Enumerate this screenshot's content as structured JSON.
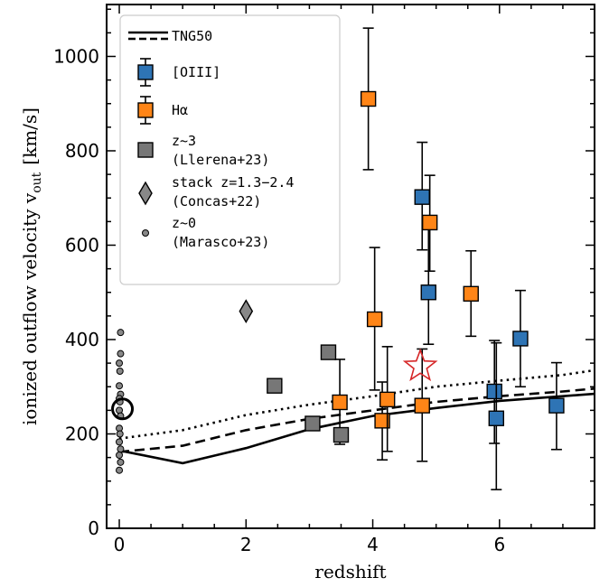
{
  "chart_data": {
    "type": "scatter",
    "xlabel": "redshift",
    "ylabel": {
      "main": "ionized outflow velocity v",
      "sub": "out",
      "unit": "[km/s]"
    },
    "xlim": [
      -0.2,
      7.5
    ],
    "ylim": [
      0,
      1110
    ],
    "xticks": [
      0,
      2,
      4,
      6
    ],
    "yticks": [
      0,
      200,
      400,
      600,
      800,
      1000
    ],
    "grid": false,
    "legend_position": "top-left",
    "colors": {
      "oiii": "#2e74b5",
      "halpha": "#ff8517",
      "llerena": "#777777",
      "concas": "#888888",
      "marasco": "#888888",
      "star": "#d62728"
    },
    "legend": [
      {
        "key": "tng50",
        "label": "TNG50"
      },
      {
        "key": "oiii",
        "label": "[OIII]"
      },
      {
        "key": "halpha",
        "label": "Hα"
      },
      {
        "key": "llerena",
        "label": "z~3",
        "label2": "(Llerena+23)"
      },
      {
        "key": "concas",
        "label": "stack z=1.3−2.4",
        "label2": "(Concas+22)"
      },
      {
        "key": "marasco",
        "label": "z~0",
        "label2": "(Marasco+23)"
      }
    ],
    "series": [
      {
        "key": "tng50_solid",
        "kind": "line",
        "dash": "solid",
        "points": [
          [
            0,
            165
          ],
          [
            1,
            138
          ],
          [
            2,
            170
          ],
          [
            3,
            210
          ],
          [
            4,
            238
          ],
          [
            5,
            255
          ],
          [
            6,
            270
          ],
          [
            7,
            280
          ],
          [
            7.5,
            285
          ]
        ]
      },
      {
        "key": "tng50_dashed",
        "kind": "line",
        "dash": "dashed",
        "points": [
          [
            0,
            162
          ],
          [
            1,
            175
          ],
          [
            2,
            208
          ],
          [
            3,
            232
          ],
          [
            4,
            250
          ],
          [
            5,
            268
          ],
          [
            6,
            280
          ],
          [
            7,
            290
          ],
          [
            7.5,
            296
          ]
        ]
      },
      {
        "key": "tng50_dotted",
        "kind": "line",
        "dash": "dotted",
        "points": [
          [
            0,
            190
          ],
          [
            1,
            208
          ],
          [
            2,
            240
          ],
          [
            3,
            262
          ],
          [
            4,
            280
          ],
          [
            5,
            300
          ],
          [
            6,
            313
          ],
          [
            7,
            325
          ],
          [
            7.5,
            335
          ]
        ]
      },
      {
        "key": "oiii",
        "kind": "points",
        "marker": "square",
        "points": [
          {
            "x": 4.78,
            "y": 702,
            "ylo": 590,
            "yhi": 818
          },
          {
            "x": 4.88,
            "y": 500,
            "ylo": 390,
            "yhi": 640
          },
          {
            "x": 5.92,
            "y": 290,
            "ylo": 180,
            "yhi": 398
          },
          {
            "x": 5.95,
            "y": 233,
            "ylo": 82,
            "yhi": 393
          },
          {
            "x": 6.33,
            "y": 402,
            "ylo": 300,
            "yhi": 504
          },
          {
            "x": 6.9,
            "y": 260,
            "ylo": 167,
            "yhi": 351
          }
        ]
      },
      {
        "key": "halpha",
        "kind": "points",
        "marker": "square",
        "points": [
          {
            "x": 3.93,
            "y": 910,
            "ylo": 760,
            "yhi": 1060
          },
          {
            "x": 4.03,
            "y": 443,
            "ylo": 293,
            "yhi": 595
          },
          {
            "x": 4.15,
            "y": 228,
            "ylo": 145,
            "yhi": 310
          },
          {
            "x": 4.23,
            "y": 273,
            "ylo": 163,
            "yhi": 385
          },
          {
            "x": 3.48,
            "y": 267,
            "ylo": 178,
            "yhi": 358
          },
          {
            "x": 4.78,
            "y": 260,
            "ylo": 142,
            "yhi": 380
          },
          {
            "x": 4.9,
            "y": 648,
            "ylo": 545,
            "yhi": 748
          },
          {
            "x": 5.55,
            "y": 497,
            "ylo": 407,
            "yhi": 588
          }
        ]
      },
      {
        "key": "llerena",
        "kind": "points",
        "marker": "square",
        "points": [
          {
            "x": 2.45,
            "y": 302
          },
          {
            "x": 3.05,
            "y": 222
          },
          {
            "x": 3.3,
            "y": 373
          },
          {
            "x": 3.5,
            "y": 198
          }
        ]
      },
      {
        "key": "concas",
        "kind": "points",
        "marker": "diamond",
        "points": [
          {
            "x": 2.0,
            "y": 460
          }
        ]
      },
      {
        "key": "marasco",
        "kind": "points",
        "marker": "circle",
        "points": [
          {
            "x": 0.02,
            "y": 415
          },
          {
            "x": 0.02,
            "y": 370
          },
          {
            "x": 0.0,
            "y": 350
          },
          {
            "x": 0.01,
            "y": 333
          },
          {
            "x": 0.0,
            "y": 302
          },
          {
            "x": 0.02,
            "y": 284
          },
          {
            "x": 0.0,
            "y": 275
          },
          {
            "x": 0.01,
            "y": 268
          },
          {
            "x": 0.0,
            "y": 250
          },
          {
            "x": 0.02,
            "y": 238
          },
          {
            "x": 0.0,
            "y": 212
          },
          {
            "x": 0.01,
            "y": 200
          },
          {
            "x": 0.0,
            "y": 183
          },
          {
            "x": 0.02,
            "y": 168
          },
          {
            "x": 0.0,
            "y": 155
          },
          {
            "x": 0.02,
            "y": 140
          },
          {
            "x": 0.0,
            "y": 123
          }
        ]
      },
      {
        "key": "marasco_mean",
        "kind": "points",
        "marker": "ring",
        "points": [
          {
            "x": 0.05,
            "y": 253
          }
        ]
      },
      {
        "key": "star",
        "kind": "points",
        "marker": "star",
        "points": [
          {
            "x": 4.75,
            "y": 343
          }
        ]
      }
    ]
  }
}
